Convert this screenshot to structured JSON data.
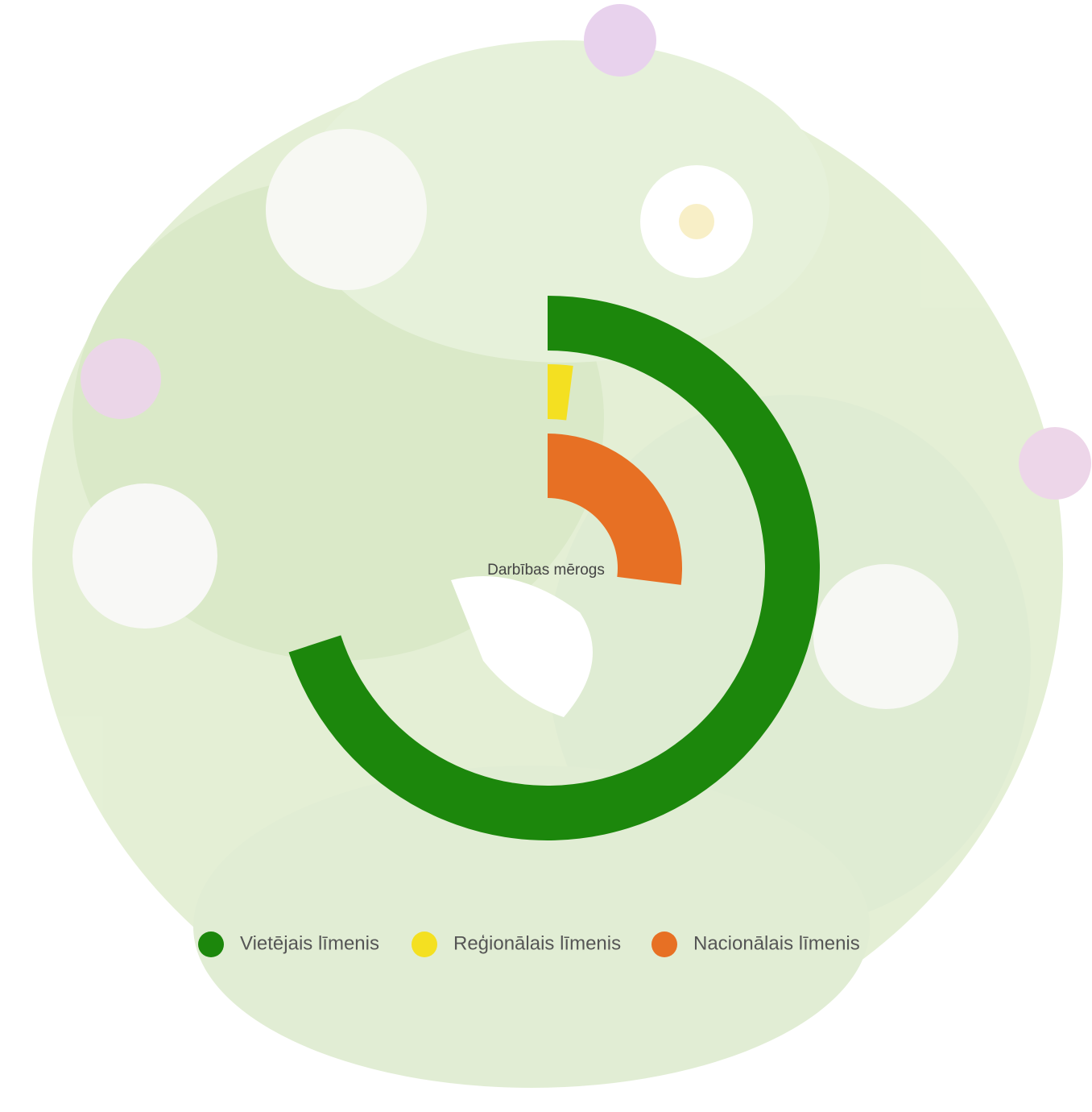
{
  "chart_data": {
    "type": "radialbar",
    "title": "Darbības mērogs",
    "ylim": [
      0,
      100
    ],
    "series": [
      {
        "name": "Vietējais līmenis",
        "color": "#1c870c",
        "values": [
          70
        ]
      },
      {
        "name": "Reģionālais līmenis",
        "color": "#f4e021",
        "values": [
          2
        ]
      },
      {
        "name": "Nacionālais līmenis",
        "color": "#e77024",
        "values": [
          27
        ]
      }
    ]
  }
}
